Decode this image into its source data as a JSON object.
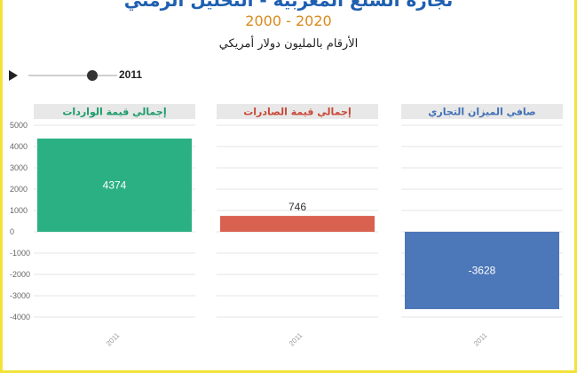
{
  "title": "تجارة السلع المغربية - التحليل الزمني",
  "years": "2000 - 2020",
  "subtitle": "الأرقام بالمليون دولار أمريكي",
  "player": {
    "current_year": "2011",
    "position": 0.72
  },
  "chart_data": {
    "type": "bar",
    "ylim": [
      -4000,
      5000
    ],
    "y_ticks": [
      5000,
      4000,
      3000,
      2000,
      1000,
      0,
      -1000,
      -2000,
      -3000,
      -4000
    ],
    "grid": true,
    "panels": [
      {
        "title": "إجمالي قيمة الواردات",
        "title_color": "#1a9b6a",
        "color": "#2bb083",
        "categories": [
          "2011"
        ],
        "values": [
          4374
        ],
        "label": "4374",
        "label_color": "#ffffff"
      },
      {
        "title": "إجمالي قيمة الصادرات",
        "title_color": "#c94735",
        "color": "#d96150",
        "categories": [
          "2011"
        ],
        "values": [
          746
        ],
        "label": "746",
        "label_color": "#333333"
      },
      {
        "title": "صافي الميزان التجاري",
        "title_color": "#3f6fb5",
        "color": "#4c77b8",
        "categories": [
          "2011"
        ],
        "values": [
          -3628
        ],
        "label": "-3628",
        "label_color": "#ffffff"
      }
    ]
  }
}
